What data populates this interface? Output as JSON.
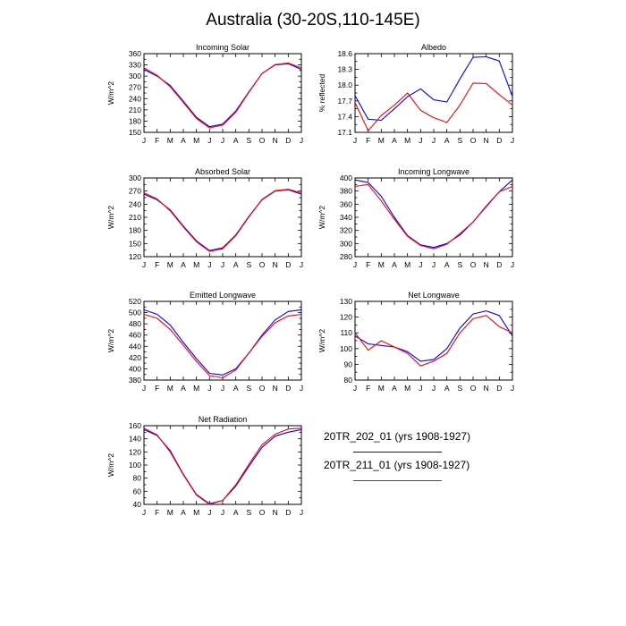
{
  "title": "Australia (30-20S,110-145E)",
  "legend": [
    {
      "label": "20TR_202_01 (yrs 1908-1927)",
      "color": "#0000ff"
    },
    {
      "label": "20TR_211_01 (yrs 1908-1927)",
      "color": "#ff0000"
    }
  ],
  "chart_data": [
    {
      "type": "line",
      "title": "Incoming Solar",
      "ylabel": "W/m^2",
      "x": [
        "J",
        "F",
        "M",
        "A",
        "M",
        "J",
        "J",
        "A",
        "S",
        "O",
        "N",
        "D",
        "J"
      ],
      "ylim": [
        150,
        360
      ],
      "yticks": [
        150,
        165,
        180,
        195,
        210,
        225,
        240,
        255,
        270,
        285,
        300,
        315,
        330,
        345,
        360
      ],
      "ytick_labels": [
        "150",
        "",
        "180",
        "",
        "210",
        "",
        "240",
        "",
        "270",
        "",
        "300",
        "",
        "330",
        "",
        "360"
      ],
      "series": [
        {
          "values": [
            318,
            300,
            275,
            233,
            190,
            165,
            172,
            207,
            258,
            307,
            330,
            333,
            318
          ],
          "color": "#0000ff"
        },
        {
          "values": [
            322,
            302,
            272,
            230,
            187,
            162,
            169,
            204,
            257,
            307,
            331,
            335,
            322
          ],
          "color": "#ff0000"
        }
      ]
    },
    {
      "type": "line",
      "title": "Albedo",
      "ylabel": "% reflected",
      "x": [
        "J",
        "F",
        "M",
        "A",
        "M",
        "J",
        "J",
        "A",
        "S",
        "O",
        "N",
        "D",
        "J"
      ],
      "ylim": [
        17.1,
        18.6
      ],
      "yticks": [
        17.1,
        17.25,
        17.4,
        17.55,
        17.7,
        17.85,
        18.0,
        18.15,
        18.3,
        18.45,
        18.6
      ],
      "ytick_labels": [
        "17.1",
        "",
        "17.4",
        "",
        "17.7",
        "",
        "18.0",
        "",
        "18.3",
        "",
        "18.6"
      ],
      "series": [
        {
          "values": [
            17.8,
            17.35,
            17.33,
            17.55,
            17.78,
            17.93,
            17.72,
            17.68,
            18.12,
            18.53,
            18.54,
            18.46,
            17.78
          ],
          "color": "#0000ff"
        },
        {
          "values": [
            17.67,
            17.13,
            17.42,
            17.62,
            17.85,
            17.52,
            17.38,
            17.29,
            17.62,
            18.04,
            18.03,
            17.82,
            17.62
          ],
          "color": "#ff0000"
        }
      ]
    },
    {
      "type": "line",
      "title": "Absorbed Solar",
      "ylabel": "W/m^2",
      "x": [
        "J",
        "F",
        "M",
        "A",
        "M",
        "J",
        "J",
        "A",
        "S",
        "O",
        "N",
        "D",
        "J"
      ],
      "ylim": [
        120,
        300
      ],
      "yticks": [
        120,
        135,
        150,
        165,
        180,
        195,
        210,
        225,
        240,
        255,
        270,
        285,
        300
      ],
      "ytick_labels": [
        "120",
        "",
        "150",
        "",
        "180",
        "",
        "210",
        "",
        "240",
        "",
        "270",
        "",
        "300"
      ],
      "series": [
        {
          "values": [
            263,
            250,
            227,
            190,
            156,
            134,
            140,
            170,
            212,
            250,
            270,
            273,
            263
          ],
          "color": "#0000ff"
        },
        {
          "values": [
            266,
            252,
            225,
            188,
            154,
            132,
            138,
            168,
            211,
            251,
            271,
            274,
            266
          ],
          "color": "#ff0000"
        }
      ]
    },
    {
      "type": "line",
      "title": "Incoming Longwave",
      "ylabel": "W/m^2",
      "x": [
        "J",
        "F",
        "M",
        "A",
        "M",
        "J",
        "J",
        "A",
        "S",
        "O",
        "N",
        "D",
        "J"
      ],
      "ylim": [
        280,
        400
      ],
      "yticks": [
        280,
        290,
        300,
        310,
        320,
        330,
        340,
        350,
        360,
        370,
        380,
        390,
        400
      ],
      "ytick_labels": [
        "280",
        "",
        "300",
        "",
        "320",
        "",
        "340",
        "",
        "360",
        "",
        "380",
        "",
        "400"
      ],
      "series": [
        {
          "values": [
            397,
            393,
            372,
            340,
            312,
            298,
            294,
            300,
            313,
            333,
            357,
            379,
            397
          ],
          "color": "#0000ff"
        },
        {
          "values": [
            387,
            390,
            365,
            337,
            311,
            297,
            292,
            299,
            315,
            333,
            356,
            379,
            387
          ],
          "color": "#ff0000"
        }
      ]
    },
    {
      "type": "line",
      "title": "Emitted Longwave",
      "ylabel": "W/m^2",
      "x": [
        "J",
        "F",
        "M",
        "A",
        "M",
        "J",
        "J",
        "A",
        "S",
        "O",
        "N",
        "D",
        "J"
      ],
      "ylim": [
        380,
        520
      ],
      "yticks": [
        380,
        390,
        400,
        410,
        420,
        430,
        440,
        450,
        460,
        470,
        480,
        490,
        500,
        510,
        520
      ],
      "ytick_labels": [
        "380",
        "",
        "400",
        "",
        "420",
        "",
        "440",
        "",
        "460",
        "",
        "480",
        "",
        "500",
        "",
        "520"
      ],
      "series": [
        {
          "values": [
            505,
            497,
            478,
            447,
            418,
            392,
            389,
            400,
            428,
            460,
            487,
            502,
            505
          ],
          "color": "#0000ff"
        },
        {
          "values": [
            497,
            490,
            470,
            442,
            413,
            388,
            384,
            398,
            428,
            458,
            482,
            494,
            497
          ],
          "color": "#ff0000"
        }
      ]
    },
    {
      "type": "line",
      "title": "Net Longwave",
      "ylabel": "W/m^2",
      "x": [
        "J",
        "F",
        "M",
        "A",
        "M",
        "J",
        "J",
        "A",
        "S",
        "O",
        "N",
        "D",
        "J"
      ],
      "ylim": [
        80,
        130
      ],
      "yticks": [
        80,
        85,
        90,
        95,
        100,
        105,
        110,
        115,
        120,
        125,
        130
      ],
      "ytick_labels": [
        "80",
        "",
        "90",
        "",
        "100",
        "",
        "110",
        "",
        "120",
        "",
        "130"
      ],
      "series": [
        {
          "values": [
            108,
            103,
            102,
            101,
            98,
            92,
            93,
            100,
            113,
            122,
            124,
            121,
            108
          ],
          "color": "#0000ff"
        },
        {
          "values": [
            110,
            99,
            105,
            101,
            97,
            89,
            92,
            97,
            110,
            119,
            121,
            114,
            110
          ],
          "color": "#ff0000"
        }
      ]
    },
    {
      "type": "line",
      "title": "Net Radiation",
      "ylabel": "W/m^2",
      "x": [
        "J",
        "F",
        "M",
        "A",
        "M",
        "J",
        "J",
        "A",
        "S",
        "O",
        "N",
        "D",
        "J"
      ],
      "ylim": [
        40,
        160
      ],
      "yticks": [
        40,
        50,
        60,
        70,
        80,
        90,
        100,
        110,
        120,
        130,
        140,
        150,
        160
      ],
      "ytick_labels": [
        "40",
        "",
        "60",
        "",
        "80",
        "",
        "100",
        "",
        "120",
        "",
        "140",
        "",
        "160"
      ],
      "series": [
        {
          "values": [
            154,
            145,
            122,
            86,
            55,
            41,
            46,
            68,
            98,
            127,
            144,
            150,
            154
          ],
          "color": "#0000ff"
        },
        {
          "values": [
            156,
            146,
            120,
            85,
            54,
            40,
            46,
            70,
            101,
            131,
            147,
            155,
            156
          ],
          "color": "#ff0000"
        }
      ]
    }
  ]
}
